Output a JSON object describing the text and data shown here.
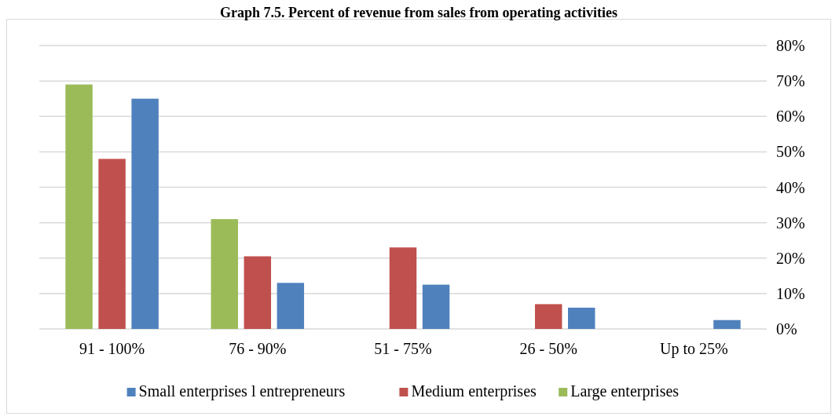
{
  "chart_data": {
    "type": "bar",
    "title": "Graph 7.5. Percent of revenue from sales from operating activities",
    "categories": [
      "91 - 100%",
      "76 - 90%",
      "51 - 75%",
      "26 - 50%",
      "Up to 25%"
    ],
    "series": [
      {
        "name": "Large enterprises",
        "color": "#9bbb59",
        "values": [
          69,
          31,
          null,
          null,
          null
        ]
      },
      {
        "name": "Medium enterprises",
        "color": "#c0504d",
        "values": [
          48,
          20.5,
          23,
          7,
          null
        ]
      },
      {
        "name": "Small enterprises l entrepreneurs",
        "color": "#4f81bd",
        "values": [
          65,
          13,
          12.5,
          6,
          2.5
        ]
      }
    ],
    "ylim": [
      0,
      80
    ],
    "yticks": [
      {
        "value": 0,
        "label": "0%"
      },
      {
        "value": 10,
        "label": "10%"
      },
      {
        "value": 20,
        "label": "20%"
      },
      {
        "value": 30,
        "label": "30%"
      },
      {
        "value": 40,
        "label": "40%"
      },
      {
        "value": 50,
        "label": "50%"
      },
      {
        "value": 60,
        "label": "60%"
      },
      {
        "value": 70,
        "label": "70%"
      },
      {
        "value": 80,
        "label": "80%"
      }
    ],
    "grid": "y",
    "legend": "bottom"
  }
}
